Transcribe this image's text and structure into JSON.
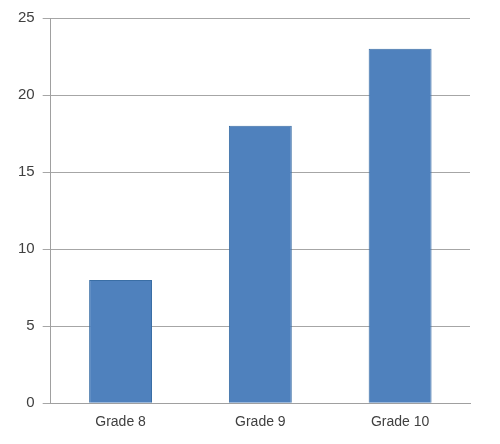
{
  "chart_data": {
    "type": "bar",
    "categories": [
      "Grade 8",
      "Grade 9",
      "Grade 10"
    ],
    "values": [
      8,
      18,
      23
    ],
    "color": "#4f81bd",
    "ylim": [
      0,
      25
    ],
    "yticks": [
      0,
      5,
      10,
      15,
      20,
      25
    ],
    "grid": true
  }
}
